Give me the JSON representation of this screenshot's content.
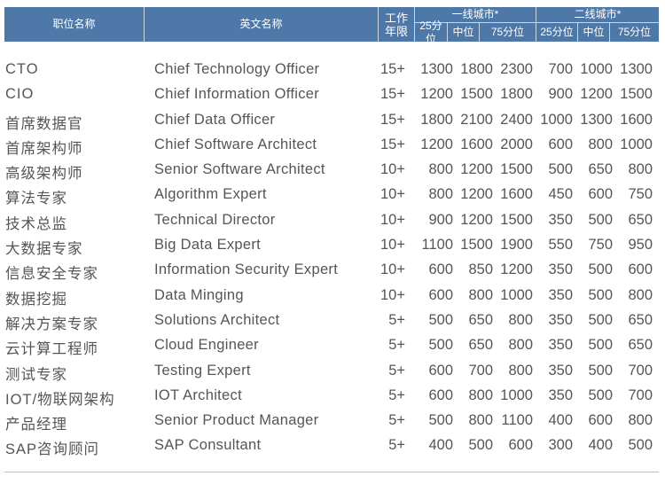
{
  "header": {
    "title": "职位名称",
    "english": "英文名称",
    "years": "工作年限",
    "tier1": "一线城市*",
    "tier2": "二线城市*",
    "p25": "25分位",
    "median": "中位",
    "p75": "75分位"
  },
  "rows": [
    [
      "CTO",
      "Chief Technology Officer",
      "15+",
      "1300",
      "1800",
      "2300",
      "700",
      "1000",
      "1300"
    ],
    [
      "CIO",
      "Chief Information Officer",
      "15+",
      "1200",
      "1500",
      "1800",
      "900",
      "1200",
      "1500"
    ],
    [
      "首席数据官",
      "Chief Data Officer",
      "15+",
      "1800",
      "2100",
      "2400",
      "1000",
      "1300",
      "1600"
    ],
    [
      "首席架构师",
      "Chief Software Architect",
      "15+",
      "1200",
      "1600",
      "2000",
      "600",
      "800",
      "1000"
    ],
    [
      "高级架构师",
      "Senior Software Architect",
      "10+",
      "800",
      "1200",
      "1500",
      "500",
      "650",
      "800"
    ],
    [
      "算法专家",
      "Algorithm Expert",
      "10+",
      "800",
      "1200",
      "1600",
      "450",
      "600",
      "750"
    ],
    [
      "技术总监",
      "Technical Director",
      "10+",
      "900",
      "1200",
      "1500",
      "350",
      "500",
      "650"
    ],
    [
      "大数据专家",
      "Big Data Expert",
      "10+",
      "1100",
      "1500",
      "1900",
      "550",
      "750",
      "950"
    ],
    [
      "信息安全专家",
      "Information Security Expert",
      "10+",
      "600",
      "850",
      "1200",
      "350",
      "500",
      "600"
    ],
    [
      "数据挖掘",
      "Data Minging",
      "10+",
      "600",
      "800",
      "1000",
      "350",
      "500",
      "800"
    ],
    [
      "解决方案专家",
      "Solutions Architect",
      "5+",
      "500",
      "650",
      "800",
      "350",
      "500",
      "650"
    ],
    [
      "云计算工程师",
      "Cloud Engineer",
      "5+",
      "500",
      "650",
      "800",
      "350",
      "500",
      "650"
    ],
    [
      "测试专家",
      "Testing Expert",
      "5+",
      "600",
      "700",
      "800",
      "350",
      "500",
      "700"
    ],
    [
      "IOT/物联网架构",
      "IOT Architect",
      "5+",
      "600",
      "800",
      "1000",
      "350",
      "500",
      "700"
    ],
    [
      "产品经理",
      "Senior Product Manager",
      "5+",
      "500",
      "800",
      "1100",
      "400",
      "600",
      "800"
    ],
    [
      "SAP咨询顾问",
      "SAP Consultant",
      "5+",
      "400",
      "500",
      "600",
      "300",
      "400",
      "500"
    ]
  ]
}
